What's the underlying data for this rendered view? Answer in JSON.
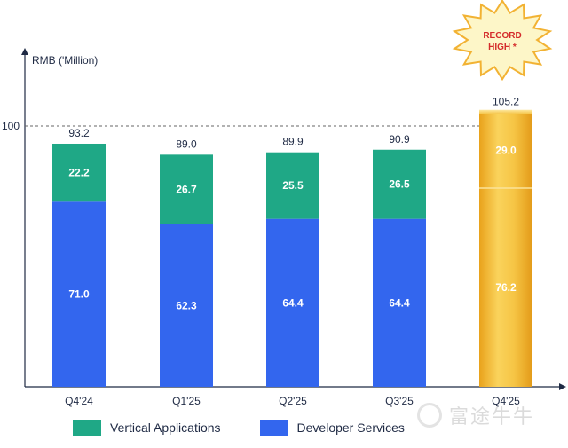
{
  "chart_data": {
    "type": "bar",
    "stacked": true,
    "ylabel": "RMB ('Million)",
    "reference_line": {
      "value": 100,
      "label": "100"
    },
    "categories": [
      "Q4'24",
      "Q1'25",
      "Q2'25",
      "Q3'25",
      "Q4'25"
    ],
    "series": [
      {
        "name": "Developer Services",
        "values": [
          71.0,
          62.3,
          64.4,
          64.4,
          76.2
        ],
        "labels": [
          "71.0",
          "62.3",
          "64.4",
          "64.4",
          "76.2"
        ],
        "color": "#3366ee"
      },
      {
        "name": "Vertical Applications",
        "values": [
          22.2,
          26.7,
          25.5,
          26.5,
          29.0
        ],
        "labels": [
          "22.2",
          "26.7",
          "25.5",
          "26.5",
          "29.0"
        ],
        "color": "#1fa886"
      }
    ],
    "totals": [
      93.2,
      89.0,
      89.9,
      90.9,
      105.2
    ],
    "total_labels": [
      "93.2",
      "89.0",
      "89.9",
      "90.9",
      "105.2"
    ],
    "highlight_index": 4,
    "highlight_color": "#f3b731",
    "ylim": [
      0,
      120
    ],
    "badge": {
      "text_line1": "RECORD",
      "text_line2": "HIGH *"
    }
  },
  "legend": {
    "vertical": {
      "label": "Vertical Applications",
      "color": "#1fa886"
    },
    "developer": {
      "label": "Developer Services",
      "color": "#3366ee"
    }
  },
  "watermark": {
    "text": "富途牛牛"
  }
}
